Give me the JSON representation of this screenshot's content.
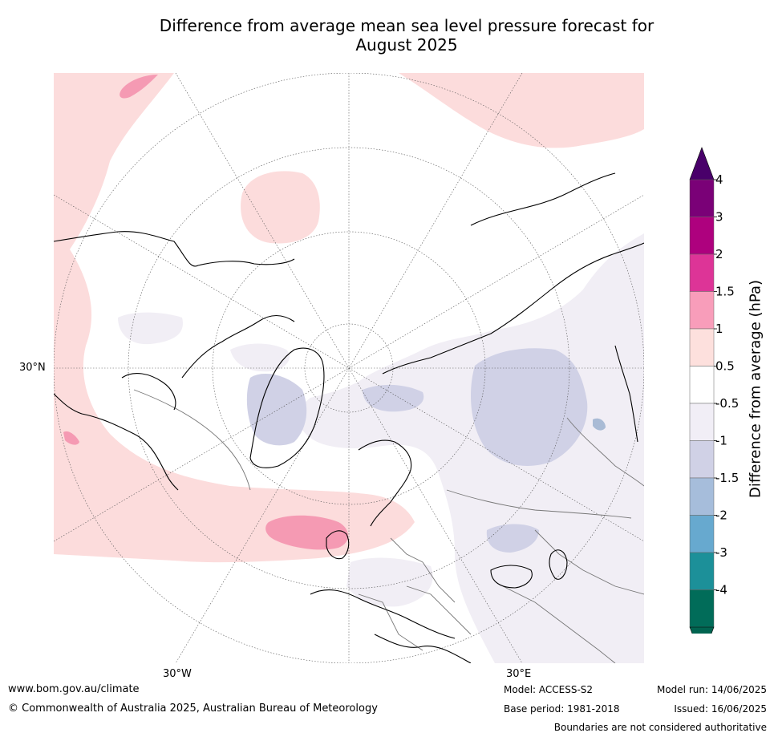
{
  "title": {
    "line1": "Difference from average mean sea level pressure forecast for",
    "line2": "August 2025"
  },
  "map": {
    "labels": {
      "lat_30n": "30°N",
      "lon_30w": "30°W",
      "lon_30e": "30°E"
    },
    "colors": {
      "pos_0_5_1": "#fcdcdc",
      "pos_1_1_5": "#f59ab3",
      "neg_0_5_1": "#f1eef5",
      "neg_1_1_5": "#d0d1e6",
      "neg_1_5_2": "#a9bbd5",
      "coast": "#000000",
      "borders": "#777777"
    }
  },
  "colorbar": {
    "title": "Difference from average (hPa)",
    "ticks": [
      "4",
      "3",
      "2",
      "1.5",
      "1",
      "0.5",
      "-0.5",
      "-1",
      "-1.5",
      "-2",
      "-3",
      "-4"
    ],
    "colors": [
      "#7a0177",
      "#ae017e",
      "#dd3497",
      "#f89dba",
      "#fde0dd",
      "#ffffff",
      "#f1eef6",
      "#d0d1e6",
      "#a6bddb",
      "#67a9cf",
      "#1c9099",
      "#016c59"
    ],
    "over_color": "#49006a",
    "under_color": "#016450"
  },
  "footer": {
    "website": "www.bom.gov.au/climate",
    "copyright": "© Commonwealth of Australia 2025, Australian Bureau of Meteorology",
    "model": "Model: ACCESS-S2",
    "base_period": "Base period: 1981-2018",
    "model_run": "Model run: 14/06/2025",
    "issued": "Issued: 16/06/2025",
    "disclaimer": "Boundaries are not considered authoritative"
  }
}
